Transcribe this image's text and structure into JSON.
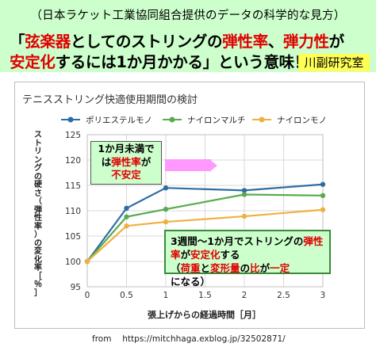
{
  "header": {
    "subtitle": "（日本ラケット工業協同組合提供のデータの科学的な見方）",
    "line1_pre": "「",
    "line1_red1": "弦楽器",
    "line1_mid": "としてのストリングの",
    "line1_red2": "弾性率",
    "line1_sep": "、",
    "line1_red3": "弾力性",
    "line1_post": "が",
    "line2_red1": "安定化",
    "line2_post": "するには1か月かかる」という意味！",
    "lab": "川副研究室"
  },
  "annotations": {
    "note1_line1": "1か月未満で",
    "note1_line2_pre": "は",
    "note1_line2_red": "弾性率",
    "note1_line2_post": "が",
    "note1_line3_red": "不安定",
    "note2_line1_pre": "3週間～1か月",
    "note2_line1_mid": "でストリングの",
    "note2_line1_red": "弾性",
    "note2_line2_red1": "率",
    "note2_line2_mid": "が",
    "note2_line2_red2": "安定化",
    "note2_line2_post": "する",
    "note2_line3_a": "（",
    "note2_line3_red1": "荷重",
    "note2_line3_b": "と",
    "note2_line3_red2": "変形量",
    "note2_line3_c": "の",
    "note2_line3_red3": "比",
    "note2_line3_d": "が",
    "note2_line3_red4": "一定",
    "note2_line3_e": "になる）"
  },
  "source": "from　 https://mitchhaga.exblog.jp/32502871/",
  "chart_data": {
    "type": "line",
    "title": "テニスストリング快適使用期間の検討",
    "xlabel": "張上げからの経過時間［月］",
    "ylabel": "ストリングの硬さ（弾性率）の変化率［％］",
    "x": [
      0,
      0.5,
      1,
      2,
      3
    ],
    "xlim": [
      0,
      3
    ],
    "xticks": [
      "0",
      "0.5",
      "1",
      "1.5",
      "2",
      "2.5",
      "3"
    ],
    "ylim": [
      95,
      125
    ],
    "yticks": [
      "95",
      "100",
      "105",
      "110",
      "115",
      "120",
      "125"
    ],
    "grid": true,
    "legend_position": "top",
    "series": [
      {
        "name": "ポリエステルモノ",
        "color": "#2e6da4",
        "values": [
          100,
          110.5,
          114.5,
          114,
          115.2
        ]
      },
      {
        "name": "ナイロンマルチ",
        "color": "#5aab4f",
        "values": [
          100,
          108.8,
          110.3,
          113.2,
          113
        ]
      },
      {
        "name": "ナイロンモノ",
        "color": "#f0b040",
        "values": [
          100,
          107,
          107.8,
          108.9,
          110.2
        ]
      }
    ]
  }
}
